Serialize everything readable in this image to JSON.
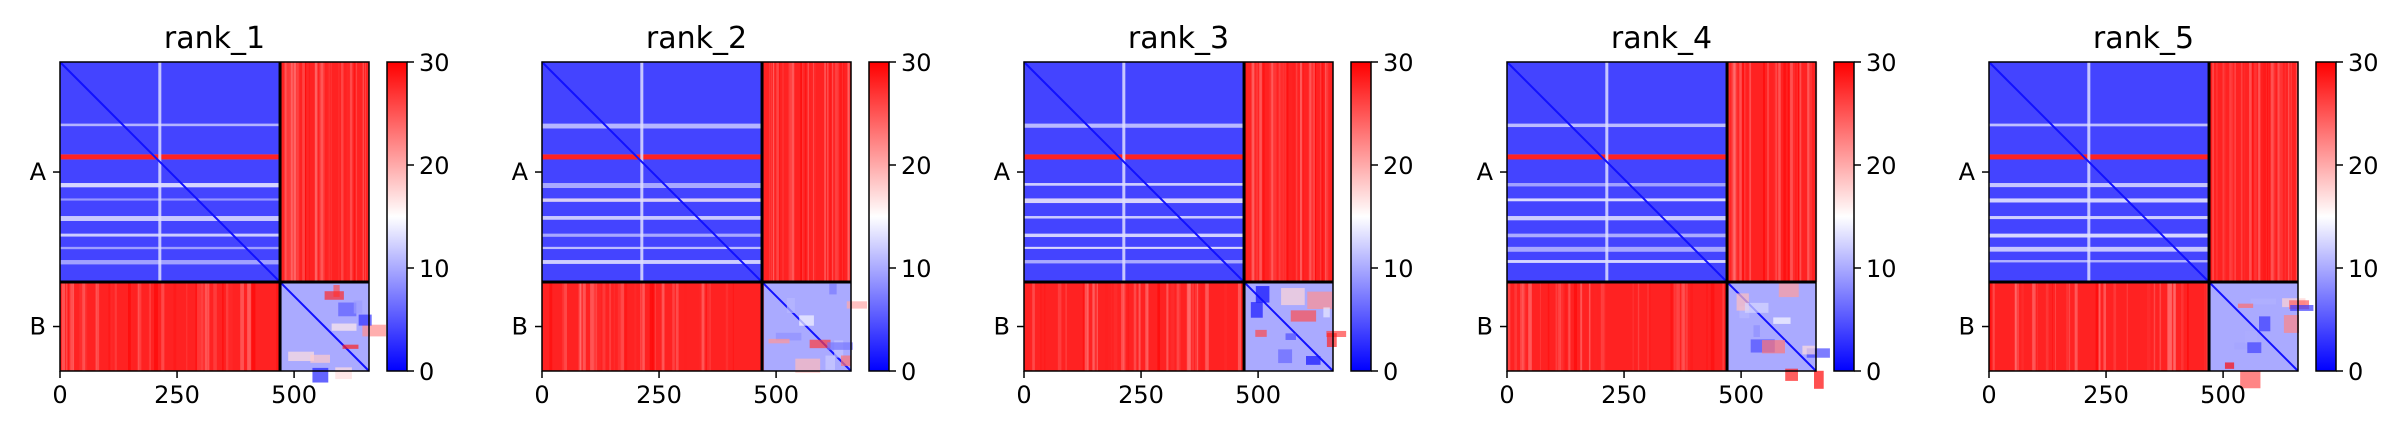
{
  "chart_data": {
    "type": "heatmap",
    "colorscale": [
      "#0000ff",
      "#ffffff",
      "#ff0000"
    ],
    "colorbar_range": [
      0,
      30
    ],
    "colorbar_ticks": [
      "0",
      "10",
      "20",
      "30"
    ],
    "x_range": [
      0,
      660
    ],
    "x_ticks": [
      0,
      250,
      500
    ],
    "x_tick_labels": [
      "0",
      "250",
      "500"
    ],
    "chains": [
      {
        "label": "A",
        "length": 470
      },
      {
        "label": "B",
        "length": 190
      }
    ],
    "panels": [
      {
        "title": "rank_1"
      },
      {
        "title": "rank_2"
      },
      {
        "title": "rank_3"
      },
      {
        "title": "rank_4"
      },
      {
        "title": "rank_5"
      }
    ],
    "block_mean_values": {
      "A_A": 4,
      "A_B": 28,
      "B_A": 28,
      "B_B": 10
    }
  }
}
